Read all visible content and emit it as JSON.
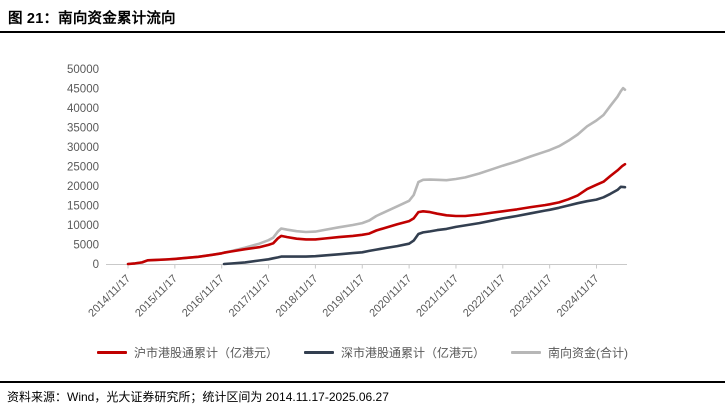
{
  "header": {
    "title": "图 21：南向资金累计流向"
  },
  "footer": {
    "source_text": "资料来源：Wind，光大证券研究所；统计区间为 2014.11.17-2025.06.27"
  },
  "chart_data": {
    "type": "line",
    "title": "南向资金累计流向",
    "xlabel": "",
    "ylabel": "",
    "x_unit": "years since 2014/11/17",
    "x_range": [
      0,
      10.61
    ],
    "y_range": [
      0,
      50000
    ],
    "y_ticks": [
      0,
      5000,
      10000,
      15000,
      20000,
      25000,
      30000,
      35000,
      40000,
      45000,
      50000
    ],
    "x_tick_labels": [
      "2014/11/17",
      "2015/11/17",
      "2016/11/17",
      "2017/11/17",
      "2018/11/17",
      "2019/11/17",
      "2020/11/17",
      "2021/11/17",
      "2022/11/17",
      "2023/11/17",
      "2024/11/17"
    ],
    "x_tick_interval_years": 1,
    "gridlines": false,
    "legend_position": "bottom",
    "axis_color": "#C9C9C9",
    "tick_label_color": "#595959",
    "series": [
      {
        "name": "沪市港股通累计（亿港元）",
        "color": "#C00000",
        "points": [
          [
            0,
            0
          ],
          [
            0.15,
            150
          ],
          [
            0.3,
            400
          ],
          [
            0.42,
            950
          ],
          [
            0.6,
            1050
          ],
          [
            0.8,
            1150
          ],
          [
            1.0,
            1300
          ],
          [
            1.2,
            1500
          ],
          [
            1.5,
            1850
          ],
          [
            1.8,
            2350
          ],
          [
            2.0,
            2750
          ],
          [
            2.05,
            2900
          ],
          [
            2.2,
            3200
          ],
          [
            2.5,
            3800
          ],
          [
            2.8,
            4300
          ],
          [
            3.0,
            4900
          ],
          [
            3.1,
            5300
          ],
          [
            3.2,
            6600
          ],
          [
            3.27,
            7200
          ],
          [
            3.4,
            6900
          ],
          [
            3.6,
            6500
          ],
          [
            3.8,
            6300
          ],
          [
            4.0,
            6300
          ],
          [
            4.2,
            6550
          ],
          [
            4.5,
            6900
          ],
          [
            4.8,
            7200
          ],
          [
            5.0,
            7500
          ],
          [
            5.15,
            7800
          ],
          [
            5.3,
            8600
          ],
          [
            5.5,
            9300
          ],
          [
            5.75,
            10200
          ],
          [
            6.0,
            11000
          ],
          [
            6.1,
            11700
          ],
          [
            6.2,
            13300
          ],
          [
            6.3,
            13500
          ],
          [
            6.45,
            13300
          ],
          [
            6.6,
            12900
          ],
          [
            6.8,
            12500
          ],
          [
            7.0,
            12300
          ],
          [
            7.2,
            12300
          ],
          [
            7.5,
            12700
          ],
          [
            7.8,
            13200
          ],
          [
            8.0,
            13500
          ],
          [
            8.3,
            14000
          ],
          [
            8.6,
            14600
          ],
          [
            8.9,
            15100
          ],
          [
            9.0,
            15300
          ],
          [
            9.2,
            15800
          ],
          [
            9.4,
            16600
          ],
          [
            9.6,
            17600
          ],
          [
            9.8,
            19200
          ],
          [
            10.0,
            20300
          ],
          [
            10.15,
            21100
          ],
          [
            10.3,
            22600
          ],
          [
            10.45,
            24000
          ],
          [
            10.55,
            25100
          ],
          [
            10.61,
            25600
          ]
        ]
      },
      {
        "name": "深市港股通累计（亿港元）",
        "color": "#333F50",
        "points": [
          [
            2.05,
            0
          ],
          [
            2.2,
            120
          ],
          [
            2.5,
            400
          ],
          [
            2.8,
            900
          ],
          [
            3.0,
            1200
          ],
          [
            3.1,
            1450
          ],
          [
            3.2,
            1700
          ],
          [
            3.27,
            1900
          ],
          [
            3.5,
            1900
          ],
          [
            3.8,
            1900
          ],
          [
            4.0,
            2000
          ],
          [
            4.2,
            2200
          ],
          [
            4.5,
            2500
          ],
          [
            4.8,
            2800
          ],
          [
            5.0,
            3000
          ],
          [
            5.15,
            3350
          ],
          [
            5.3,
            3700
          ],
          [
            5.5,
            4100
          ],
          [
            5.75,
            4600
          ],
          [
            6.0,
            5200
          ],
          [
            6.1,
            6000
          ],
          [
            6.2,
            7700
          ],
          [
            6.3,
            8100
          ],
          [
            6.45,
            8350
          ],
          [
            6.6,
            8700
          ],
          [
            6.8,
            9000
          ],
          [
            7.0,
            9500
          ],
          [
            7.2,
            9900
          ],
          [
            7.5,
            10500
          ],
          [
            7.8,
            11200
          ],
          [
            8.0,
            11700
          ],
          [
            8.3,
            12300
          ],
          [
            8.6,
            13000
          ],
          [
            8.9,
            13700
          ],
          [
            9.0,
            13900
          ],
          [
            9.2,
            14400
          ],
          [
            9.4,
            15000
          ],
          [
            9.6,
            15600
          ],
          [
            9.8,
            16100
          ],
          [
            10.0,
            16500
          ],
          [
            10.15,
            17100
          ],
          [
            10.3,
            18000
          ],
          [
            10.45,
            19000
          ],
          [
            10.52,
            19800
          ],
          [
            10.61,
            19700
          ]
        ]
      },
      {
        "name": "南向资金(合计)",
        "color": "#B7B7B7",
        "points": [
          [
            0,
            0
          ],
          [
            0.15,
            150
          ],
          [
            0.3,
            400
          ],
          [
            0.42,
            950
          ],
          [
            0.6,
            1050
          ],
          [
            0.8,
            1150
          ],
          [
            1.0,
            1300
          ],
          [
            1.2,
            1500
          ],
          [
            1.5,
            1850
          ],
          [
            1.8,
            2350
          ],
          [
            2.0,
            2750
          ],
          [
            2.05,
            2900
          ],
          [
            2.2,
            3320
          ],
          [
            2.5,
            4200
          ],
          [
            2.8,
            5200
          ],
          [
            3.0,
            6100
          ],
          [
            3.1,
            6750
          ],
          [
            3.2,
            8300
          ],
          [
            3.27,
            9100
          ],
          [
            3.4,
            8800
          ],
          [
            3.6,
            8400
          ],
          [
            3.8,
            8200
          ],
          [
            4.0,
            8300
          ],
          [
            4.2,
            8750
          ],
          [
            4.5,
            9400
          ],
          [
            4.8,
            10000
          ],
          [
            5.0,
            10500
          ],
          [
            5.15,
            11150
          ],
          [
            5.3,
            12300
          ],
          [
            5.5,
            13400
          ],
          [
            5.75,
            14800
          ],
          [
            6.0,
            16200
          ],
          [
            6.1,
            17700
          ],
          [
            6.2,
            21000
          ],
          [
            6.3,
            21600
          ],
          [
            6.45,
            21650
          ],
          [
            6.6,
            21600
          ],
          [
            6.8,
            21500
          ],
          [
            7.0,
            21800
          ],
          [
            7.2,
            22200
          ],
          [
            7.5,
            23200
          ],
          [
            7.8,
            24400
          ],
          [
            8.0,
            25200
          ],
          [
            8.3,
            26300
          ],
          [
            8.6,
            27600
          ],
          [
            8.9,
            28800
          ],
          [
            9.0,
            29200
          ],
          [
            9.2,
            30200
          ],
          [
            9.4,
            31600
          ],
          [
            9.6,
            33200
          ],
          [
            9.8,
            35300
          ],
          [
            10.0,
            36800
          ],
          [
            10.15,
            38200
          ],
          [
            10.3,
            40600
          ],
          [
            10.45,
            42900
          ],
          [
            10.52,
            44300
          ],
          [
            10.57,
            45100
          ],
          [
            10.61,
            44700
          ]
        ]
      }
    ]
  }
}
